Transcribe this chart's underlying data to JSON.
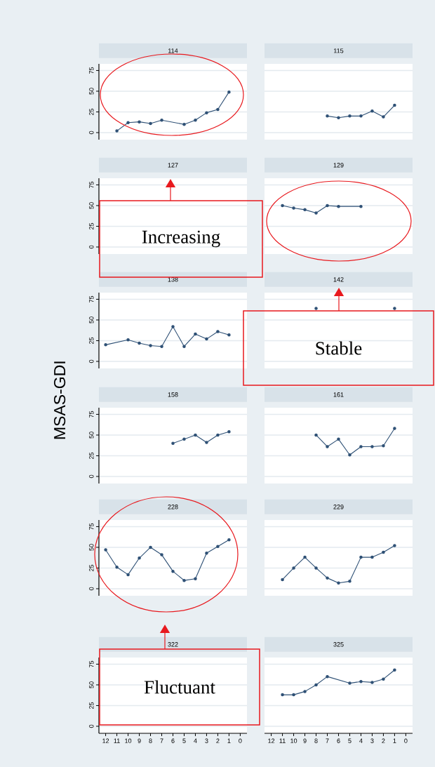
{
  "chart_data": [
    {
      "type": "line",
      "title": "114",
      "x": [
        11,
        10,
        9,
        8,
        7,
        5,
        4,
        3,
        2,
        1
      ],
      "values": [
        2,
        12,
        13,
        11,
        15,
        10,
        15,
        24,
        28,
        49
      ],
      "color": "#2e5075",
      "marker": "circle",
      "line_style": "solid",
      "xlim": [
        12.6,
        -0.6
      ],
      "ylim": [
        -8.5,
        83
      ],
      "yticks": [
        0,
        25,
        50,
        75
      ],
      "grid": "y",
      "tick_labels": "y",
      "annotations": [
        "Increasing"
      ]
    },
    {
      "type": "line",
      "title": "115",
      "x": [
        7,
        6,
        5,
        4,
        3,
        2,
        1
      ],
      "values": [
        20,
        18,
        20,
        20,
        26,
        19,
        33
      ],
      "color": "#2e5075",
      "marker": "circle",
      "line_style": "solid",
      "xlim": [
        12.6,
        -0.6
      ],
      "ylim": [
        -8.5,
        83
      ],
      "yticks": [
        0,
        25,
        50,
        75
      ],
      "grid": "y",
      "tick_labels": false
    },
    {
      "type": "line",
      "title": "127",
      "xlim": [
        12.6,
        -0.6
      ],
      "ylim": [
        -8.5,
        83
      ],
      "yticks": [
        0,
        25,
        50,
        75
      ],
      "grid": "y",
      "tick_labels": "y"
    },
    {
      "type": "line",
      "title": "129",
      "x": [
        11,
        10,
        9,
        8,
        7,
        6,
        4
      ],
      "values": [
        50,
        47,
        45,
        41,
        50,
        49,
        49
      ],
      "color": "#2e5075",
      "marker": "circle",
      "line_style": "solid",
      "xlim": [
        12.6,
        -0.6
      ],
      "ylim": [
        -8.5,
        83
      ],
      "yticks": [
        0,
        25,
        50,
        75
      ],
      "grid": "y",
      "tick_labels": false,
      "annotations": [
        "Stable"
      ]
    },
    {
      "type": "line",
      "title": "138",
      "x": [
        12,
        10,
        9,
        8,
        7,
        6,
        5,
        4,
        3,
        2,
        1
      ],
      "values": [
        20,
        26,
        22,
        19,
        18,
        42,
        18,
        33,
        27,
        36,
        32
      ],
      "color": "#2e5075",
      "marker": "circle",
      "line_style": "solid",
      "xlim": [
        12.6,
        -0.6
      ],
      "ylim": [
        -8.5,
        83
      ],
      "yticks": [
        0,
        25,
        50,
        75
      ],
      "grid": "y",
      "tick_labels": "y"
    },
    {
      "type": "scatter",
      "title": "142",
      "x": [
        8,
        1
      ],
      "values": [
        64,
        64
      ],
      "color": "#2e5075",
      "marker": "circle",
      "xlim": [
        12.6,
        -0.6
      ],
      "ylim": [
        -8.5,
        83
      ],
      "yticks": [
        0,
        25,
        50,
        75
      ],
      "grid": "y",
      "tick_labels": false
    },
    {
      "type": "line",
      "title": "158",
      "ylabel": "MSAS-GDI",
      "x": [
        6,
        5,
        4,
        3,
        2,
        1
      ],
      "values": [
        40,
        45,
        50,
        41,
        50,
        54
      ],
      "color": "#2e5075",
      "marker": "circle",
      "line_style": "solid",
      "xlim": [
        12.6,
        -0.6
      ],
      "ylim": [
        -8.5,
        83
      ],
      "yticks": [
        0,
        25,
        50,
        75
      ],
      "grid": "y",
      "tick_labels": "y"
    },
    {
      "type": "line",
      "title": "161",
      "x": [
        8,
        7,
        6,
        5,
        4,
        3,
        2,
        1
      ],
      "values": [
        50,
        36,
        45,
        26,
        36,
        36,
        37,
        58
      ],
      "color": "#2e5075",
      "marker": "circle",
      "line_style": "solid",
      "xlim": [
        12.6,
        -0.6
      ],
      "ylim": [
        -8.5,
        83
      ],
      "yticks": [
        0,
        25,
        50,
        75
      ],
      "grid": "y",
      "tick_labels": false
    },
    {
      "type": "line",
      "title": "228",
      "x": [
        12,
        11,
        10,
        9,
        8,
        7,
        6,
        5,
        4,
        3,
        2,
        1
      ],
      "values": [
        47,
        26,
        17,
        37,
        50,
        41,
        21,
        10,
        12,
        43,
        51,
        59
      ],
      "color": "#2e5075",
      "marker": "circle",
      "line_style": "solid",
      "xlim": [
        12.6,
        -0.6
      ],
      "ylim": [
        -8.5,
        83
      ],
      "yticks": [
        0,
        25,
        50,
        75
      ],
      "grid": "y",
      "tick_labels": "y",
      "annotations": [
        "Fluctuant"
      ]
    },
    {
      "type": "line",
      "title": "229",
      "x": [
        11,
        10,
        9,
        8,
        7,
        6,
        5,
        4,
        3,
        2,
        1
      ],
      "values": [
        11,
        25,
        38,
        25,
        13,
        7,
        9,
        38,
        38,
        44,
        52
      ],
      "color": "#2e5075",
      "marker": "circle",
      "line_style": "solid",
      "xlim": [
        12.6,
        -0.6
      ],
      "ylim": [
        -8.5,
        83
      ],
      "yticks": [
        0,
        25,
        50,
        75
      ],
      "grid": "y",
      "tick_labels": false
    },
    {
      "type": "line",
      "title": "322",
      "xlim": [
        12.6,
        -0.6
      ],
      "ylim": [
        -8.5,
        83
      ],
      "xticks": [
        12,
        11,
        10,
        9,
        8,
        7,
        6,
        5,
        4,
        3,
        2,
        1,
        0
      ],
      "yticks": [
        0,
        25,
        50,
        75
      ],
      "grid": "y"
    },
    {
      "type": "line",
      "title": "325",
      "x": [
        11,
        10,
        9,
        8,
        7,
        5,
        4,
        3,
        2,
        1
      ],
      "values": [
        38,
        38,
        42,
        50,
        60,
        52,
        54,
        53,
        57,
        68
      ],
      "color": "#2e5075",
      "marker": "circle",
      "line_style": "solid",
      "xlim": [
        12.6,
        -0.6
      ],
      "ylim": [
        -8.5,
        83
      ],
      "xticks": [
        12,
        11,
        10,
        9,
        8,
        7,
        6,
        5,
        4,
        3,
        2,
        1,
        0
      ],
      "yticks": [
        0,
        25,
        50,
        75
      ],
      "grid": "y",
      "tick_labels": "x"
    }
  ]
}
